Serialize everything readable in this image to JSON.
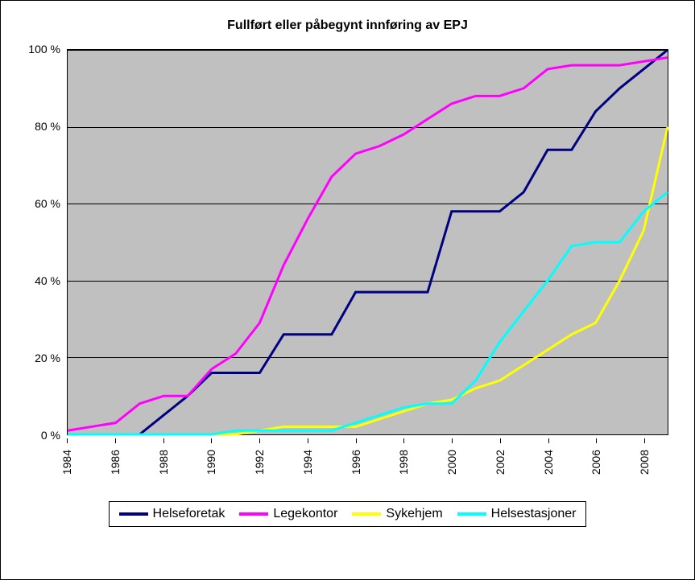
{
  "chart": {
    "type": "line",
    "title": "Fullført eller påbegynt innføring av EPJ",
    "title_fontsize": 16,
    "title_fontweight": "bold",
    "background_color": "#ffffff",
    "plot_background_color": "#c0c0c0",
    "border_color": "#000000",
    "grid_color": "#000000",
    "line_width": 3,
    "font_family": "Arial",
    "label_fontsize": 14,
    "xlim": [
      1984,
      2009
    ],
    "ylim": [
      0,
      100
    ],
    "ytick_step": 20,
    "ytick_suffix": " %",
    "xticks": [
      1984,
      1986,
      1988,
      1990,
      1992,
      1994,
      1996,
      1998,
      2000,
      2002,
      2004,
      2006,
      2008
    ],
    "xtick_rotation": -90,
    "legend_position": "bottom",
    "series": [
      {
        "name": "Helseforetak",
        "color": "#000080",
        "x": [
          1984,
          1985,
          1986,
          1987,
          1988,
          1989,
          1990,
          1991,
          1992,
          1993,
          1994,
          1995,
          1996,
          1997,
          1998,
          1999,
          2000,
          2001,
          2002,
          2003,
          2004,
          2005,
          2006,
          2007,
          2008,
          2009
        ],
        "y": [
          0,
          0,
          0,
          0,
          5,
          10,
          16,
          16,
          16,
          26,
          26,
          26,
          37,
          37,
          37,
          37,
          58,
          58,
          58,
          63,
          74,
          74,
          84,
          90,
          95,
          100
        ]
      },
      {
        "name": "Legekontor",
        "color": "#ff00ff",
        "x": [
          1984,
          1985,
          1986,
          1987,
          1988,
          1989,
          1990,
          1991,
          1992,
          1993,
          1994,
          1995,
          1996,
          1997,
          1998,
          1999,
          2000,
          2001,
          2002,
          2003,
          2004,
          2005,
          2006,
          2007,
          2008,
          2009
        ],
        "y": [
          1,
          2,
          3,
          8,
          10,
          10,
          17,
          21,
          29,
          44,
          56,
          67,
          73,
          75,
          78,
          82,
          86,
          88,
          88,
          90,
          95,
          96,
          96,
          96,
          97,
          98
        ]
      },
      {
        "name": "Sykehjem",
        "color": "#ffff00",
        "x": [
          1984,
          1985,
          1986,
          1987,
          1988,
          1989,
          1990,
          1991,
          1992,
          1993,
          1994,
          1995,
          1996,
          1997,
          1998,
          1999,
          2000,
          2001,
          2002,
          2003,
          2004,
          2005,
          2006,
          2007,
          2008,
          2009
        ],
        "y": [
          0,
          0,
          0,
          0,
          0,
          0,
          0,
          0,
          1,
          2,
          2,
          2,
          2,
          4,
          6,
          8,
          9,
          12,
          14,
          18,
          22,
          26,
          29,
          40,
          53,
          80
        ]
      },
      {
        "name": "Helsestasjoner",
        "color": "#00ffff",
        "x": [
          1984,
          1985,
          1986,
          1987,
          1988,
          1989,
          1990,
          1991,
          1992,
          1993,
          1994,
          1995,
          1996,
          1997,
          1998,
          1999,
          2000,
          2001,
          2002,
          2003,
          2004,
          2005,
          2006,
          2007,
          2008,
          2009
        ],
        "y": [
          0,
          0,
          0,
          0,
          0,
          0,
          0,
          1,
          1,
          1,
          1,
          1,
          3,
          5,
          7,
          8,
          8,
          14,
          24,
          32,
          40,
          49,
          50,
          50,
          58,
          63
        ]
      }
    ]
  }
}
